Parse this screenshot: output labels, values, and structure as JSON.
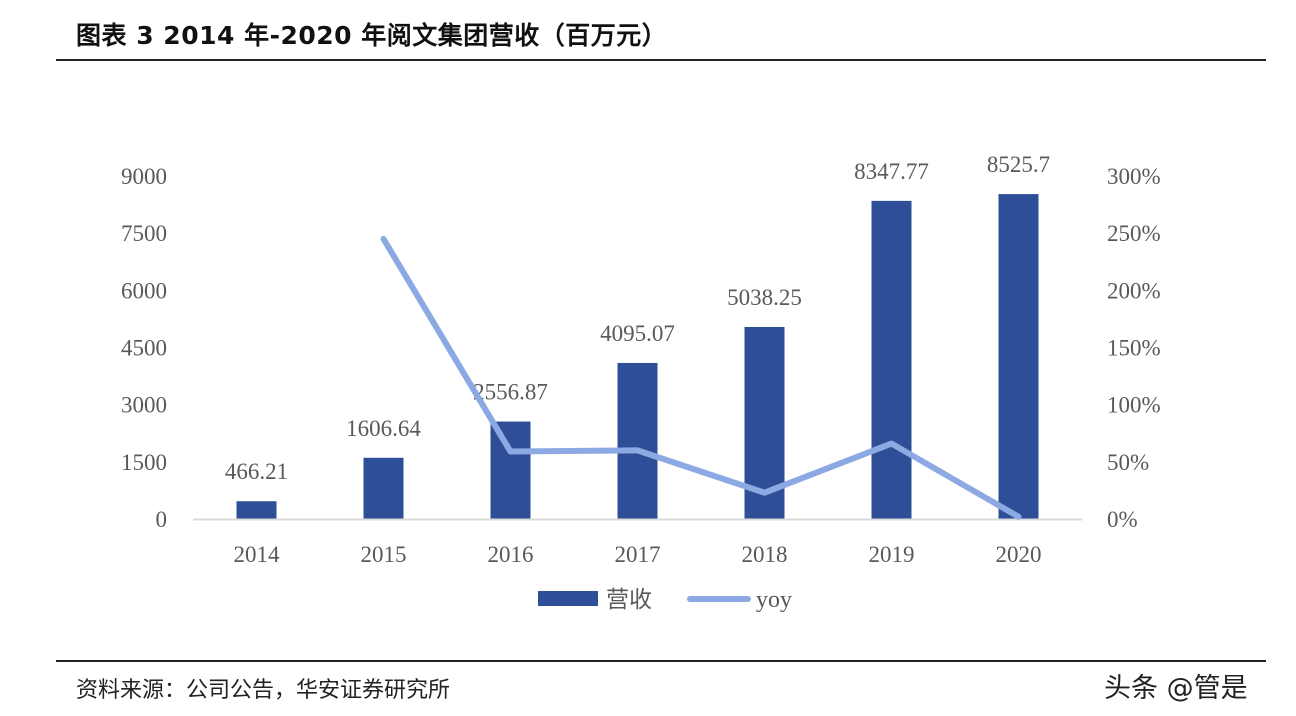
{
  "title": "图表 3 2014 年-2020 年阅文集团营收（百万元）",
  "source": "资料来源：公司公告，华安证券研究所",
  "watermark": "头条 @管是",
  "colors": {
    "bar": "#2E4F98",
    "line": "#8DA9E3",
    "axis": "#D9D9D9",
    "text": "#595959"
  },
  "chart_data": {
    "type": "bar",
    "categories": [
      "2014",
      "2015",
      "2016",
      "2017",
      "2018",
      "2019",
      "2020"
    ],
    "series": [
      {
        "name": "营收",
        "type": "bar",
        "axis": "left",
        "values": [
          466.21,
          1606.64,
          2556.87,
          4095.07,
          5038.25,
          8347.77,
          8525.7
        ],
        "labels": [
          "466.21",
          "1606.64",
          "2556.87",
          "4095.07",
          "5038.25",
          "8347.77",
          "8525.7"
        ]
      },
      {
        "name": "yoy",
        "type": "line",
        "axis": "right",
        "values": [
          null,
          245,
          59,
          60,
          23,
          66,
          2
        ]
      }
    ],
    "y_left": {
      "ylim": [
        0,
        9000
      ],
      "ticks": [
        "0",
        "1500",
        "3000",
        "4500",
        "6000",
        "7500",
        "9000"
      ]
    },
    "y_right": {
      "ylim": [
        0,
        300
      ],
      "ticks": [
        "0%",
        "50%",
        "100%",
        "150%",
        "200%",
        "250%",
        "300%"
      ]
    },
    "legend": "bottom",
    "grid": false
  }
}
